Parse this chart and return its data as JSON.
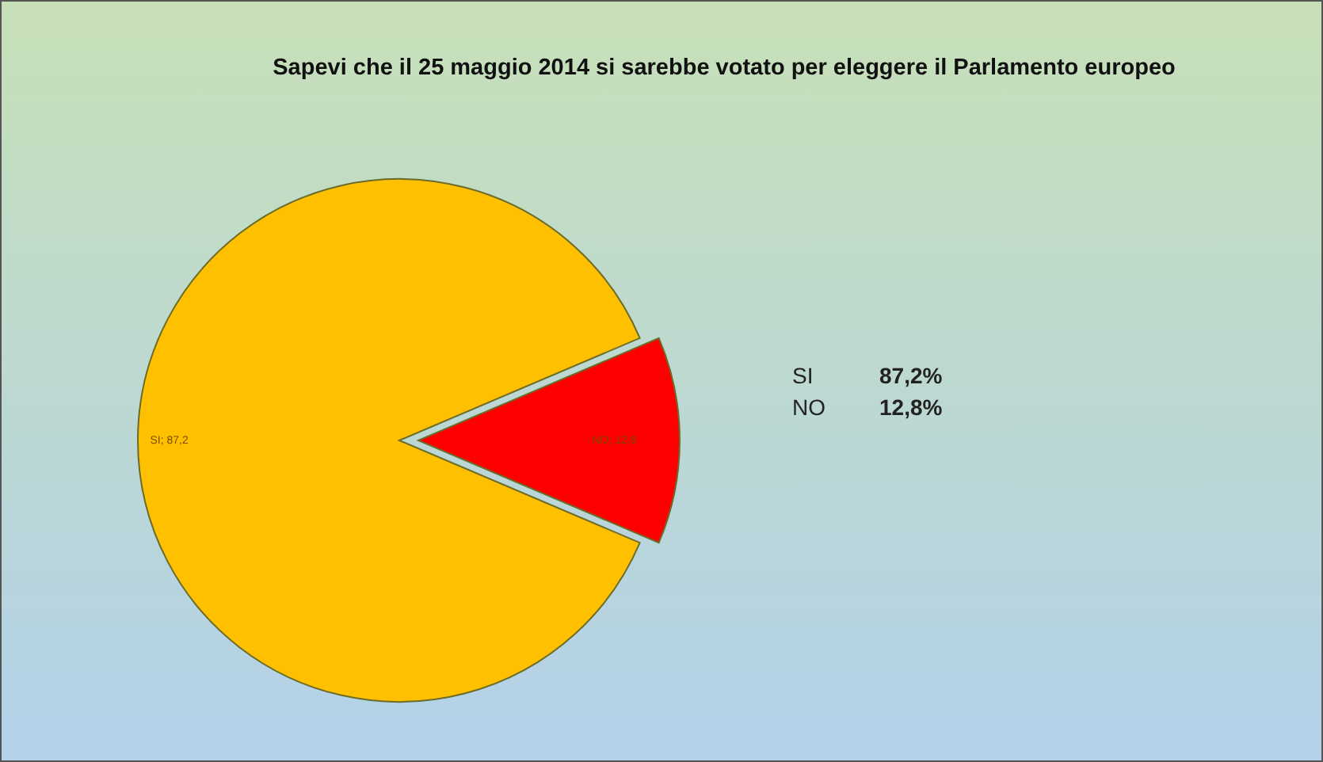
{
  "chart_data": {
    "type": "pie",
    "title": "Sapevi che il 25 maggio 2014 si sarebbe votato per eleggere il Parlamento europeo",
    "categories": [
      "SI",
      "NO"
    ],
    "values": [
      87.2,
      12.8
    ],
    "colors": [
      "#ffc000",
      "#ff0000"
    ],
    "value_labels": [
      "; 87,2",
      "; 12,8"
    ],
    "annotations": [
      "SI",
      "87,2%",
      "NO",
      "12,8%"
    ]
  }
}
